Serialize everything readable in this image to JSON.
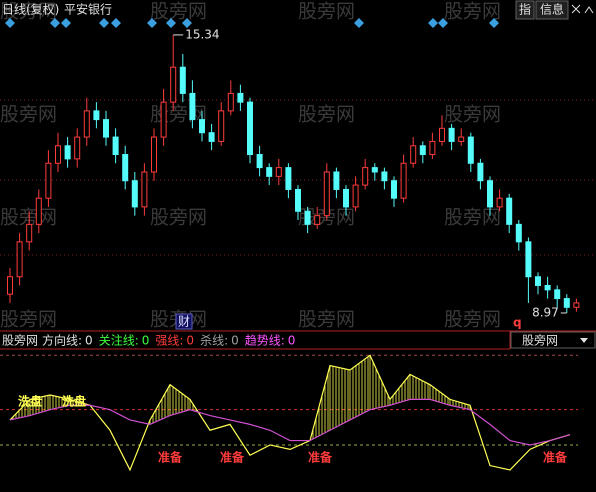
{
  "chart_data": {
    "type": "candlestick",
    "title": "日线(复权)",
    "stock": "平安银行",
    "buttons": [
      "指",
      "信息"
    ],
    "watermark": "股旁网",
    "event_badge": "财",
    "marker_q": "q",
    "up_color": "#ff3c3c",
    "down_color": "#54fcfc",
    "ylim": [
      8.58,
      16.14
    ],
    "candles": [
      [
        9.4,
        10.0,
        9.2,
        9.8
      ],
      [
        9.8,
        10.8,
        9.6,
        10.6
      ],
      [
        10.6,
        11.3,
        10.4,
        11.0
      ],
      [
        11.0,
        11.8,
        10.8,
        11.6
      ],
      [
        11.6,
        12.7,
        11.4,
        12.4
      ],
      [
        12.4,
        13.1,
        12.2,
        12.8
      ],
      [
        12.8,
        13.0,
        12.3,
        12.5
      ],
      [
        12.5,
        13.2,
        12.3,
        13.0
      ],
      [
        13.0,
        13.9,
        12.8,
        13.6
      ],
      [
        13.6,
        13.8,
        13.2,
        13.4
      ],
      [
        13.4,
        13.6,
        12.8,
        13.0
      ],
      [
        13.0,
        13.2,
        12.4,
        12.6
      ],
      [
        12.6,
        12.8,
        11.8,
        12.0
      ],
      [
        12.0,
        12.2,
        11.2,
        11.4
      ],
      [
        11.4,
        12.4,
        11.2,
        12.2
      ],
      [
        12.2,
        13.2,
        12.0,
        13.0
      ],
      [
        13.0,
        14.1,
        12.8,
        13.8
      ],
      [
        13.8,
        15.34,
        13.6,
        14.6
      ],
      [
        14.6,
        14.9,
        13.8,
        14.0
      ],
      [
        14.0,
        14.3,
        13.2,
        13.4
      ],
      [
        13.4,
        13.6,
        12.9,
        13.1
      ],
      [
        13.1,
        13.3,
        12.7,
        12.9
      ],
      [
        12.9,
        13.8,
        12.8,
        13.6
      ],
      [
        13.6,
        14.3,
        13.5,
        14.0
      ],
      [
        14.0,
        14.2,
        13.6,
        13.8
      ],
      [
        13.8,
        13.9,
        12.4,
        12.6
      ],
      [
        12.6,
        12.8,
        12.1,
        12.3
      ],
      [
        12.3,
        12.4,
        11.9,
        12.1
      ],
      [
        12.1,
        12.5,
        11.9,
        12.3
      ],
      [
        12.3,
        12.4,
        11.6,
        11.8
      ],
      [
        11.8,
        11.9,
        11.1,
        11.3
      ],
      [
        11.3,
        11.4,
        10.8,
        11.0
      ],
      [
        11.0,
        11.4,
        10.9,
        11.2
      ],
      [
        11.2,
        12.4,
        11.1,
        12.2
      ],
      [
        12.2,
        12.3,
        11.6,
        11.8
      ],
      [
        11.8,
        11.9,
        11.2,
        11.4
      ],
      [
        11.4,
        12.1,
        11.3,
        11.9
      ],
      [
        11.9,
        12.5,
        11.8,
        12.3
      ],
      [
        12.3,
        12.4,
        12.0,
        12.2
      ],
      [
        12.2,
        12.3,
        11.8,
        12.0
      ],
      [
        12.0,
        12.1,
        11.4,
        11.6
      ],
      [
        11.6,
        12.6,
        11.5,
        12.4
      ],
      [
        12.4,
        13.0,
        12.3,
        12.8
      ],
      [
        12.8,
        12.9,
        12.4,
        12.6
      ],
      [
        12.6,
        13.1,
        12.5,
        12.9
      ],
      [
        12.9,
        13.5,
        12.8,
        13.2
      ],
      [
        13.2,
        13.3,
        12.7,
        12.9
      ],
      [
        12.9,
        13.2,
        12.8,
        13.0
      ],
      [
        13.0,
        13.1,
        12.2,
        12.4
      ],
      [
        12.4,
        12.5,
        11.8,
        12.0
      ],
      [
        12.0,
        12.1,
        11.2,
        11.4
      ],
      [
        11.4,
        11.8,
        11.3,
        11.6
      ],
      [
        11.6,
        11.7,
        10.8,
        11.0
      ],
      [
        11.0,
        11.1,
        10.4,
        10.6
      ],
      [
        10.6,
        10.7,
        9.2,
        9.8
      ],
      [
        9.8,
        9.9,
        9.4,
        9.6
      ],
      [
        9.6,
        9.8,
        9.3,
        9.5
      ],
      [
        9.5,
        9.6,
        9.1,
        9.3
      ],
      [
        9.3,
        9.4,
        8.97,
        9.1
      ],
      [
        9.1,
        9.3,
        9.0,
        9.2
      ]
    ],
    "high_index": 17,
    "low_index": 58,
    "indicator": {
      "name": "股旁网",
      "ylim": [
        0,
        100
      ],
      "legend": [
        {
          "name": "方向线:",
          "value": 0,
          "color": "#e0e0e0"
        },
        {
          "name": "关注线:",
          "value": 0,
          "color": "#3cff3c"
        },
        {
          "name": "强线:",
          "value": 0,
          "color": "#ff3c3c"
        },
        {
          "name": "杀线:",
          "value": 0,
          "color": "#a0a0a0"
        },
        {
          "name": "趋势线:",
          "value": 0,
          "color": "#ff54ff"
        }
      ],
      "lines": [
        {
          "color": "#ffff54",
          "values": [
            49,
            63,
            66,
            63,
            59,
            42,
            15,
            49,
            73,
            63,
            42,
            46,
            25,
            32,
            29,
            35,
            86,
            83,
            93,
            63,
            80,
            73,
            63,
            59,
            18,
            15,
            29,
            35,
            39
          ]
        },
        {
          "color": "#d050d0",
          "values": [
            49,
            52,
            56,
            59,
            59,
            56,
            49,
            46,
            52,
            56,
            52,
            49,
            46,
            42,
            35,
            35,
            42,
            49,
            56,
            59,
            63,
            63,
            59,
            56,
            46,
            35,
            32,
            35,
            39
          ]
        }
      ],
      "levels": [
        {
          "value": 93,
          "color": "#a04848"
        },
        {
          "value": 56,
          "color": "#d03030"
        },
        {
          "value": 32,
          "color": "#90b040"
        }
      ],
      "annotations": [
        "洗盘",
        "洗盘",
        "准备",
        "准备",
        "准备",
        "准备"
      ]
    }
  }
}
